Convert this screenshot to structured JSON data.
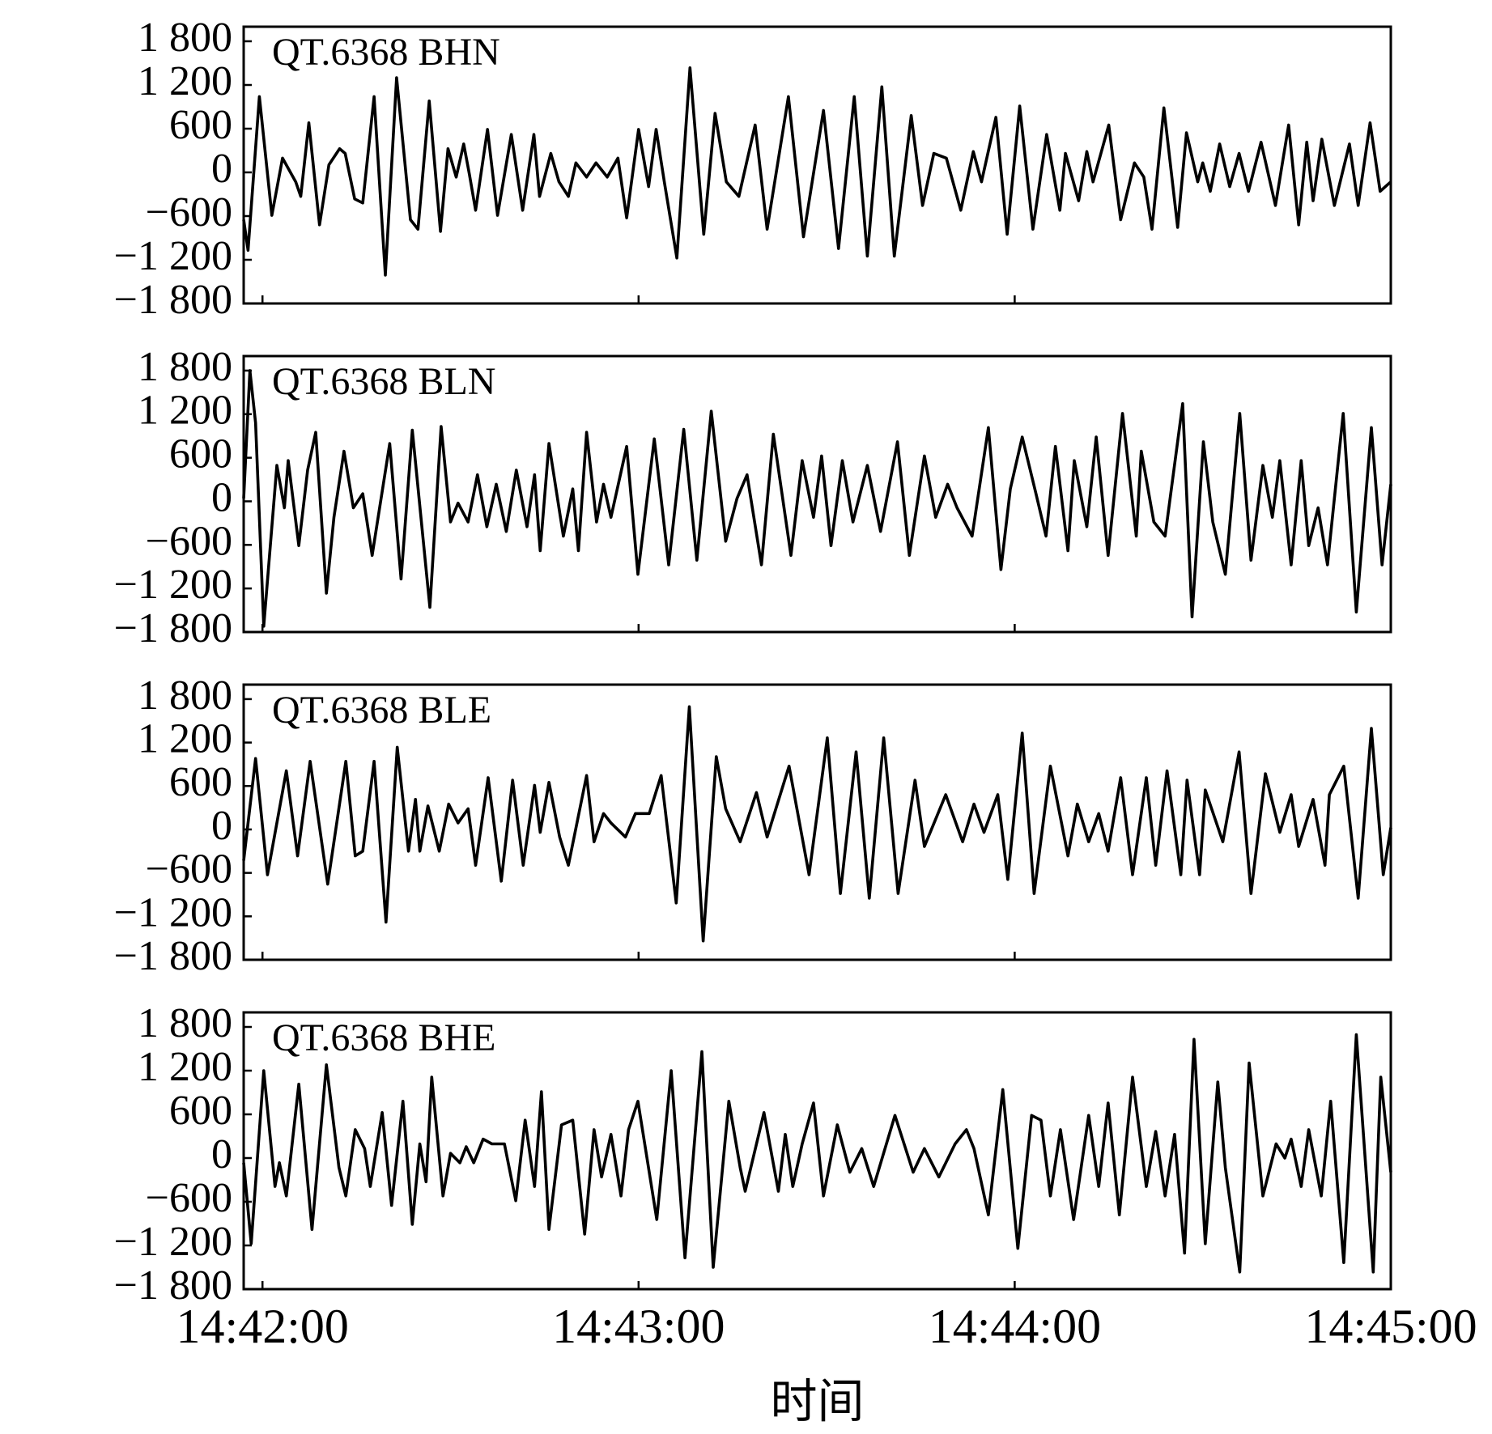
{
  "chart_data": [
    {
      "type": "line",
      "xlim": [
        -3,
        180
      ],
      "ylim": [
        -1800,
        2000
      ],
      "yticks": [
        {
          "value": 1800,
          "label": "1 800"
        },
        {
          "value": 1200,
          "label": "1 200"
        },
        600,
        0,
        {
          "value": -600,
          "label": "−600"
        },
        {
          "value": -1200,
          "label": "−1 200"
        },
        {
          "value": -1800,
          "label": "−1 800"
        }
      ],
      "xticks": [
        0,
        60,
        120
      ],
      "series": [
        {
          "name": "QT.6368 BHN",
          "color": "#000000",
          "x": [
            -3.0,
            -2.3,
            -0.5,
            1.5,
            3.2,
            5.3,
            6.1,
            7.4,
            9.1,
            10.6,
            12.3,
            13.2,
            14.7,
            16.0,
            17.8,
            19.6,
            21.4,
            23.6,
            24.8,
            26.6,
            28.4,
            29.6,
            30.9,
            32.1,
            33.0,
            34.0,
            35.9,
            37.5,
            39.7,
            41.5,
            43.3,
            44.2,
            46.0,
            47.3,
            48.8,
            50.0,
            51.7,
            53.2,
            55.0,
            56.7,
            58.1,
            60.0,
            61.6,
            62.8,
            64.1,
            66.1,
            68.2,
            70.4,
            72.2,
            74.0,
            76.0,
            78.6,
            80.5,
            83.9,
            86.3,
            89.5,
            91.9,
            94.4,
            96.5,
            98.8,
            100.8,
            103.5,
            105.3,
            107.1,
            109.1,
            111.4,
            113.4,
            114.7,
            117.0,
            118.8,
            120.8,
            122.9,
            125.1,
            127.2,
            128.1,
            130.2,
            131.5,
            132.5,
            135.0,
            136.9,
            139.1,
            140.6,
            141.9,
            143.8,
            146.0,
            147.4,
            149.2,
            150.0,
            151.2,
            152.7,
            154.3,
            155.8,
            157.3,
            159.3,
            161.6,
            163.7,
            165.3,
            166.6,
            167.6,
            169.0,
            171.0,
            173.4,
            174.8,
            176.7,
            178.3,
            180.0
          ],
          "values": [
            -650,
            -1070,
            1040,
            -590,
            195,
            -130,
            -330,
            680,
            -720,
            105,
            325,
            260,
            -365,
            -420,
            1040,
            -1410,
            1300,
            -650,
            -780,
            980,
            -810,
            325,
            -65,
            390,
            -25,
            -520,
            590,
            -590,
            520,
            -520,
            520,
            -330,
            260,
            -130,
            -330,
            130,
            -65,
            130,
            -65,
            195,
            -625,
            590,
            -195,
            590,
            -130,
            -1175,
            1435,
            -850,
            810,
            -130,
            -330,
            650,
            -780,
            1040,
            -885,
            850,
            -1045,
            1040,
            -1150,
            1175,
            -1150,
            780,
            -455,
            260,
            195,
            -520,
            285,
            -130,
            755,
            -850,
            910,
            -780,
            520,
            -520,
            260,
            -390,
            285,
            -130,
            650,
            -650,
            130,
            -65,
            -780,
            885,
            -755,
            545,
            -130,
            130,
            -260,
            390,
            -195,
            260,
            -260,
            415,
            -455,
            650,
            -720,
            415,
            -390,
            455,
            -455,
            390,
            -455,
            680,
            -260,
            -130
          ]
        }
      ]
    },
    {
      "type": "line",
      "xlim": [
        -3,
        180
      ],
      "ylim": [
        -1800,
        2000
      ],
      "yticks": [
        {
          "value": 1800,
          "label": "1 800"
        },
        {
          "value": 1200,
          "label": "1 200"
        },
        600,
        0,
        {
          "value": -600,
          "label": "−600"
        },
        {
          "value": -1200,
          "label": "−1 200"
        },
        {
          "value": -1800,
          "label": "−1 800"
        }
      ],
      "xticks": [
        0,
        60,
        120
      ],
      "series": [
        {
          "name": "QT.6368 BLN",
          "color": "#000000",
          "x": [
            -3.0,
            -2.0,
            -1.1,
            0.2,
            2.3,
            3.5,
            4.1,
            5.8,
            7.2,
            8.5,
            10.2,
            11.4,
            13.0,
            14.5,
            16.0,
            17.5,
            20.3,
            22.1,
            23.9,
            26.7,
            28.5,
            30.0,
            31.2,
            32.8,
            34.3,
            35.8,
            37.3,
            38.9,
            40.5,
            42.2,
            43.4,
            44.3,
            45.7,
            48.0,
            49.5,
            50.4,
            51.7,
            53.3,
            54.4,
            55.6,
            58.1,
            59.9,
            62.5,
            64.8,
            67.2,
            69.3,
            71.6,
            73.9,
            75.7,
            77.3,
            79.6,
            81.5,
            84.3,
            86.1,
            87.9,
            89.2,
            90.7,
            92.5,
            94.2,
            96.5,
            98.6,
            101.3,
            103.2,
            105.6,
            107.4,
            109.3,
            110.8,
            113.2,
            115.8,
            117.8,
            119.3,
            121.2,
            123.4,
            125.0,
            126.5,
            128.5,
            129.5,
            131.5,
            133.0,
            134.9,
            137.2,
            139.4,
            140.2,
            142.2,
            144.0,
            146.8,
            148.3,
            150.1,
            151.6,
            153.6,
            155.9,
            157.7,
            159.6,
            161.1,
            162.3,
            164.1,
            165.7,
            166.9,
            168.4,
            169.9,
            172.4,
            174.5,
            176.9,
            178.6,
            180.0
          ],
          "values": [
            40,
            1800,
            1080,
            -1720,
            495,
            -90,
            560,
            -610,
            430,
            950,
            -1265,
            -220,
            690,
            -90,
            105,
            -745,
            795,
            -1070,
            980,
            -1460,
            1030,
            -285,
            -25,
            -285,
            365,
            -350,
            235,
            -415,
            430,
            -350,
            365,
            -680,
            795,
            -480,
            170,
            -680,
            950,
            -285,
            235,
            -220,
            755,
            -1005,
            860,
            -875,
            990,
            -810,
            1240,
            -550,
            40,
            365,
            -875,
            925,
            -745,
            560,
            -220,
            625,
            -610,
            560,
            -285,
            495,
            -415,
            820,
            -745,
            625,
            -220,
            235,
            -90,
            -480,
            1015,
            -940,
            170,
            885,
            105,
            -480,
            755,
            -680,
            560,
            -350,
            885,
            -745,
            1210,
            -480,
            690,
            -285,
            -480,
            1345,
            -1590,
            820,
            -285,
            -1005,
            1210,
            -810,
            495,
            -220,
            560,
            -875,
            560,
            -610,
            -90,
            -875,
            1210,
            -1525,
            1015,
            -875,
            235
          ]
        }
      ]
    },
    {
      "type": "line",
      "xlim": [
        -3,
        180
      ],
      "ylim": [
        -1800,
        2000
      ],
      "yticks": [
        {
          "value": 1800,
          "label": "1 800"
        },
        {
          "value": 1200,
          "label": "1 200"
        },
        600,
        0,
        {
          "value": -600,
          "label": "−600"
        },
        {
          "value": -1200,
          "label": "−1 200"
        },
        {
          "value": -1800,
          "label": "−1 800"
        }
      ],
      "xticks": [
        0,
        60,
        120
      ],
      "series": [
        {
          "name": "QT.6368 BLE",
          "color": "#000000",
          "x": [
            -3.0,
            -1.1,
            0.8,
            3.8,
            5.6,
            7.6,
            10.4,
            13.3,
            14.8,
            16.0,
            17.8,
            19.7,
            21.5,
            23.3,
            24.4,
            25.1,
            26.4,
            28.2,
            29.7,
            31.2,
            32.8,
            34.0,
            36.0,
            38.1,
            39.9,
            41.6,
            43.4,
            44.3,
            45.7,
            47.4,
            48.8,
            51.7,
            52.9,
            54.4,
            55.6,
            57.9,
            59.5,
            61.7,
            63.6,
            66.0,
            68.1,
            70.3,
            72.4,
            73.9,
            76.2,
            78.8,
            80.5,
            84.0,
            87.2,
            90.1,
            92.2,
            94.7,
            96.8,
            99.1,
            101.4,
            104.1,
            105.6,
            109.0,
            111.7,
            113.5,
            115.1,
            117.3,
            118.9,
            121.2,
            123.1,
            125.7,
            128.5,
            130.0,
            131.8,
            133.4,
            134.9,
            136.9,
            138.8,
            141.0,
            142.5,
            144.3,
            146.5,
            147.5,
            149.5,
            150.4,
            153.2,
            155.8,
            157.7,
            160.0,
            162.3,
            164.1,
            165.3,
            167.6,
            169.5,
            170.2,
            172.5,
            174.8,
            176.9,
            178.8,
            180.0
          ],
          "values": [
            -430,
            980,
            -625,
            810,
            -365,
            940,
            -755,
            940,
            -365,
            -300,
            940,
            -1280,
            1135,
            -300,
            415,
            -300,
            325,
            -300,
            350,
            90,
            285,
            -495,
            715,
            -715,
            680,
            -495,
            610,
            -40,
            650,
            -105,
            -495,
            745,
            -170,
            220,
            90,
            -105,
            220,
            220,
            745,
            -1015,
            1695,
            -1540,
            1005,
            285,
            -170,
            510,
            -105,
            875,
            -625,
            1265,
            -885,
            1070,
            -950,
            1265,
            -885,
            680,
            -235,
            480,
            -170,
            350,
            -40,
            480,
            -690,
            1330,
            -885,
            875,
            -365,
            350,
            -170,
            220,
            -300,
            715,
            -625,
            715,
            -495,
            810,
            -625,
            680,
            -625,
            545,
            -170,
            1070,
            -885,
            770,
            -40,
            480,
            -235,
            415,
            -495,
            480,
            875,
            -950,
            1395,
            -625,
            25
          ]
        }
      ]
    },
    {
      "type": "line",
      "xlim": [
        -3,
        180
      ],
      "ylim": [
        -1800,
        2000
      ],
      "yticks": [
        {
          "value": 1800,
          "label": "1 800"
        },
        {
          "value": 1200,
          "label": "1 200"
        },
        600,
        0,
        {
          "value": -600,
          "label": "−600"
        },
        {
          "value": -1200,
          "label": "−1 200"
        },
        {
          "value": -1800,
          "label": "−1 800"
        }
      ],
      "xticks": [
        {
          "value": 0,
          "label": "14:42:00"
        },
        {
          "value": 60,
          "label": "14:43:00"
        },
        {
          "value": 120,
          "label": "14:44:00"
        },
        {
          "value": 180,
          "label": "14:45:00"
        }
      ],
      "xlabel": "时间",
      "series": [
        {
          "name": "QT.6368 BHE",
          "color": "#000000",
          "x": [
            -3.0,
            -1.8,
            0.2,
            2.0,
            2.7,
            3.8,
            5.8,
            7.9,
            10.2,
            12.2,
            13.3,
            14.8,
            16.3,
            17.2,
            19.1,
            20.6,
            22.4,
            23.9,
            25.1,
            26.1,
            27.0,
            28.8,
            30.0,
            31.5,
            32.5,
            33.7,
            35.2,
            36.6,
            38.6,
            40.4,
            41.9,
            43.4,
            44.5,
            45.7,
            47.7,
            49.5,
            51.4,
            52.9,
            54.1,
            55.6,
            57.2,
            58.4,
            59.9,
            62.9,
            65.2,
            67.4,
            70.1,
            71.9,
            74.4,
            76.2,
            77.0,
            80.0,
            82.3,
            83.4,
            84.6,
            86.1,
            87.9,
            89.5,
            91.7,
            93.7,
            95.6,
            97.5,
            100.9,
            103.8,
            105.6,
            107.9,
            110.5,
            112.3,
            113.5,
            115.8,
            118.1,
            120.5,
            122.7,
            124.2,
            125.7,
            127.3,
            129.4,
            131.8,
            133.4,
            134.9,
            136.7,
            138.8,
            141.0,
            142.5,
            144.0,
            145.5,
            147.1,
            148.6,
            150.4,
            152.4,
            153.6,
            155.9,
            157.4,
            159.6,
            161.7,
            163.1,
            164.1,
            165.7,
            166.9,
            168.9,
            170.4,
            172.5,
            174.5,
            177.2,
            178.4,
            180.0
          ],
          "values": [
            -65,
            -1175,
            1200,
            -390,
            -65,
            -520,
            1015,
            -980,
            1280,
            -130,
            -520,
            390,
            130,
            -390,
            625,
            -650,
            780,
            -910,
            195,
            -325,
            1110,
            -520,
            65,
            -65,
            155,
            -65,
            260,
            195,
            195,
            -585,
            520,
            -390,
            910,
            -980,
            455,
            520,
            -1045,
            390,
            -260,
            325,
            -520,
            390,
            780,
            -845,
            1200,
            -1370,
            1460,
            -1500,
            780,
            -130,
            -455,
            625,
            -455,
            325,
            -390,
            195,
            755,
            -520,
            455,
            -195,
            130,
            -390,
            585,
            -195,
            130,
            -260,
            195,
            390,
            130,
            -780,
            940,
            -1240,
            585,
            520,
            -520,
            390,
            -845,
            585,
            -390,
            755,
            -780,
            1110,
            -390,
            365,
            -520,
            325,
            -1305,
            1630,
            -1175,
            1045,
            -130,
            -1565,
            1305,
            -520,
            195,
            0,
            260,
            -390,
            390,
            -520,
            780,
            -1435,
            1695,
            -1565,
            1110,
            -195
          ]
        }
      ]
    }
  ]
}
